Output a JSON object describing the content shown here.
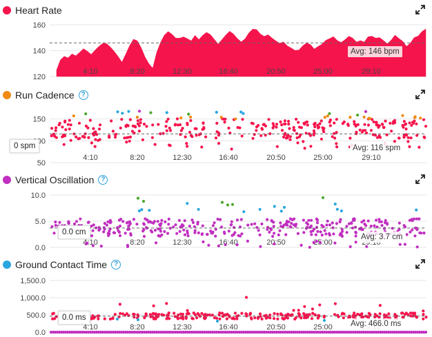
{
  "colors": {
    "heart": "#f5144c",
    "cadence_orange": "#f08a13",
    "green": "#4ea72e",
    "blue": "#2aa6e0",
    "purple": "#c12fc0",
    "avg_line": "#666666"
  },
  "icons": {
    "help": "question-circle-icon",
    "expand": "expand-arrows-icon"
  },
  "x_ticks": [
    "4:10",
    "8:20",
    "12:30",
    "16:40",
    "20:50",
    "25:00",
    "29:10"
  ],
  "panels": {
    "heart_rate": {
      "title": "Heart Rate",
      "avg_label": "Avg: 146 bpm",
      "yticks": [
        "160",
        "140",
        "120"
      ]
    },
    "run_cadence": {
      "title": "Run Cadence",
      "avg_label": "Avg: 116 spm",
      "current_label": "0 spm",
      "yticks": [
        "150",
        "100",
        "50"
      ]
    },
    "vertical_oscillation": {
      "title": "Vertical Oscillation",
      "avg_label": "Avg: 3.7 cm",
      "current_label": "0.0 cm",
      "yticks": [
        "10.0",
        "5.0",
        "0.0"
      ]
    },
    "ground_contact_time": {
      "title": "Ground Contact Time",
      "avg_label": "Avg: 466.0 ms",
      "current_label": "0.0 ms",
      "yticks": [
        "1,500.0",
        "1,000.0",
        "500.0",
        "0.0"
      ]
    }
  },
  "chart_data": [
    {
      "type": "area",
      "title": "Heart Rate",
      "ylim": [
        120,
        160
      ],
      "yticks": [
        160,
        140,
        120
      ],
      "avg": 146,
      "grid": true,
      "x_range_min": [
        0,
        33
      ],
      "series": [
        {
          "values": [
            126,
            132,
            136,
            135,
            137,
            136,
            139,
            141,
            139,
            137,
            140,
            143,
            145,
            146,
            143,
            139,
            135,
            132,
            137,
            144,
            148,
            147,
            143,
            135,
            129,
            126,
            138,
            146,
            151,
            154,
            153,
            150,
            149,
            151,
            150,
            148,
            152,
            149,
            151,
            154,
            152,
            148,
            146,
            149,
            152,
            155,
            153,
            150,
            146,
            150,
            154,
            157,
            156,
            152,
            151,
            153,
            150,
            148,
            146,
            147,
            144,
            142,
            140,
            141,
            143,
            146,
            144,
            141,
            143,
            145,
            148,
            149,
            150,
            148,
            146,
            149,
            151,
            150,
            147,
            148,
            146,
            150,
            152,
            149,
            151,
            148,
            146,
            149,
            151,
            150,
            147,
            144,
            146,
            150,
            152,
            154,
            156
          ]
        }
      ]
    },
    {
      "type": "scatter",
      "title": "Run Cadence",
      "ylim": [
        50,
        170
      ],
      "yticks": [
        150,
        100,
        50
      ],
      "avg": 116,
      "grid": true
    },
    {
      "type": "scatter",
      "title": "Vertical Oscillation",
      "ylim": [
        0,
        10
      ],
      "yticks": [
        10,
        5,
        0
      ],
      "avg": 3.7,
      "grid": true
    },
    {
      "type": "scatter",
      "title": "Ground Contact Time",
      "ylim": [
        0,
        1500
      ],
      "yticks": [
        1500,
        1000,
        500,
        0
      ],
      "avg": 466,
      "grid": true
    }
  ]
}
